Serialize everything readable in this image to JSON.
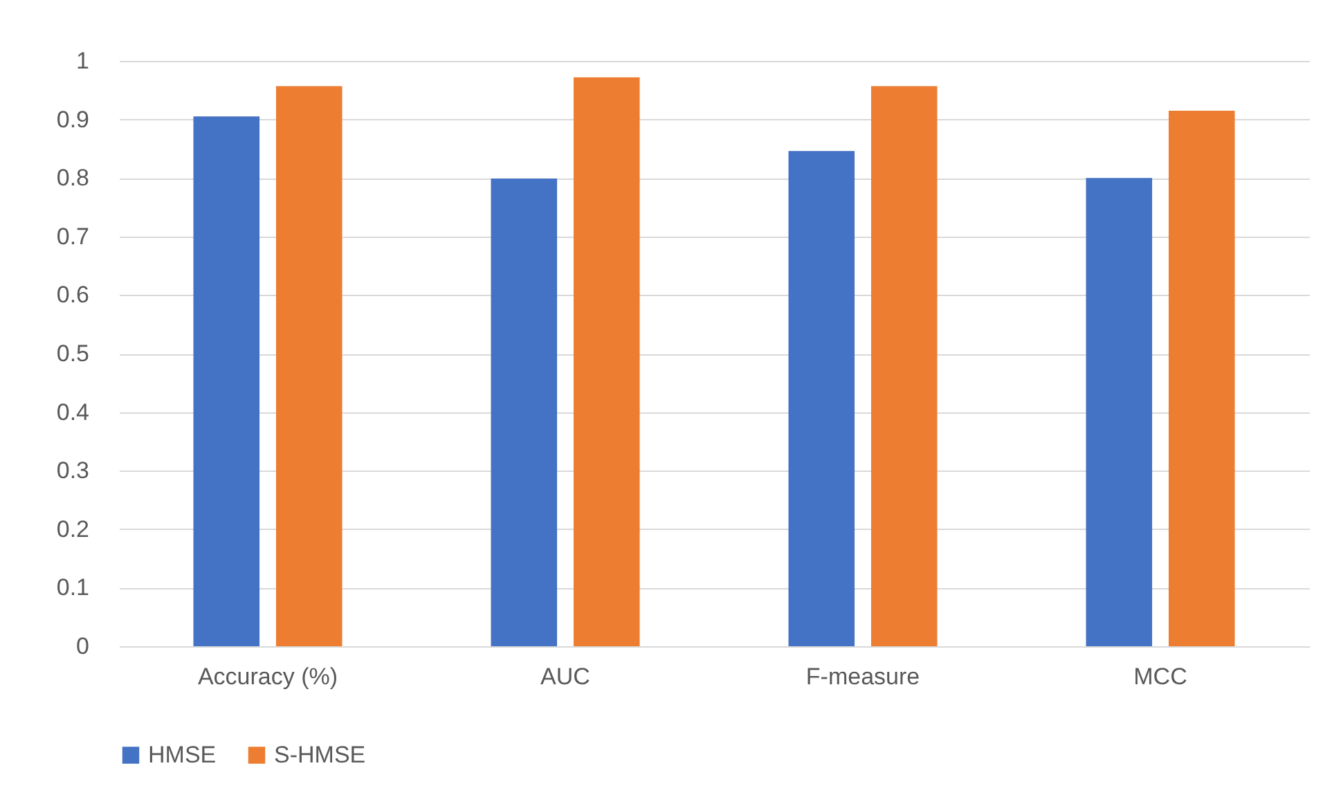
{
  "chart_data": {
    "type": "bar",
    "categories": [
      "Accuracy (%)",
      "AUC",
      "F-measure",
      "MCC"
    ],
    "series": [
      {
        "name": "HMSE",
        "color": "#4472c4",
        "values": [
          0.905,
          0.799,
          0.846,
          0.8
        ]
      },
      {
        "name": "S-HMSE",
        "color": "#ed7d31",
        "values": [
          0.957,
          0.972,
          0.957,
          0.915
        ]
      }
    ],
    "ylim": [
      0,
      1
    ],
    "yticks": [
      0,
      0.1,
      0.2,
      0.3,
      0.4,
      0.5,
      0.6,
      0.7,
      0.8,
      0.9,
      1
    ],
    "grid": "y",
    "legend": "bottom"
  }
}
